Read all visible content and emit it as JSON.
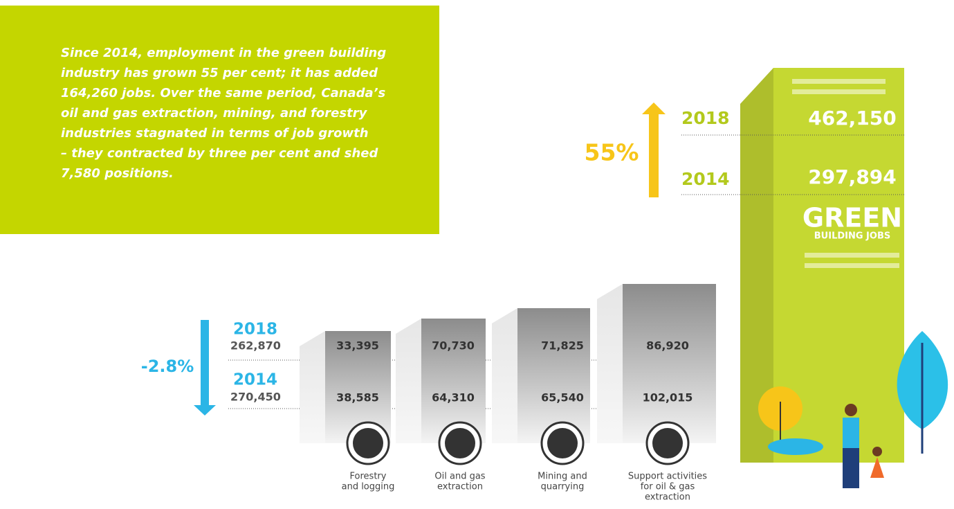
{
  "intro": {
    "lines": [
      "Since 2014, employment in the green building",
      "industry has grown 55 per cent; it has added",
      "164,260 jobs. Over the same period, Canada’s",
      "oil and gas extraction, mining, and forestry",
      "industries stagnated in terms of job growth",
      "– they contracted by three per cent and shed",
      "7,580 positions."
    ]
  },
  "green": {
    "change": "55%",
    "year_2018": "2018",
    "year_2014": "2014",
    "value_2018": "462,150",
    "value_2014": "297,894",
    "title": "GREEN",
    "subtitle": "BUILDING JOBS"
  },
  "resource": {
    "change": "-2.8%",
    "year_2018": "2018",
    "year_2014": "2014",
    "total_2018": "262,870",
    "total_2014": "270,450",
    "sectors": [
      {
        "label": [
          "Forestry",
          "and logging"
        ],
        "value_2018": "33,395",
        "value_2014": "38,585"
      },
      {
        "label": [
          "Oil and gas",
          "extraction"
        ],
        "value_2018": "70,730",
        "value_2014": "64,310"
      },
      {
        "label": [
          "Mining and",
          "quarrying"
        ],
        "value_2018": "71,825",
        "value_2014": "65,540"
      },
      {
        "label": [
          "Support activities",
          "for oil & gas",
          "extraction"
        ],
        "value_2018": "86,920",
        "value_2014": "102,015"
      }
    ]
  }
}
